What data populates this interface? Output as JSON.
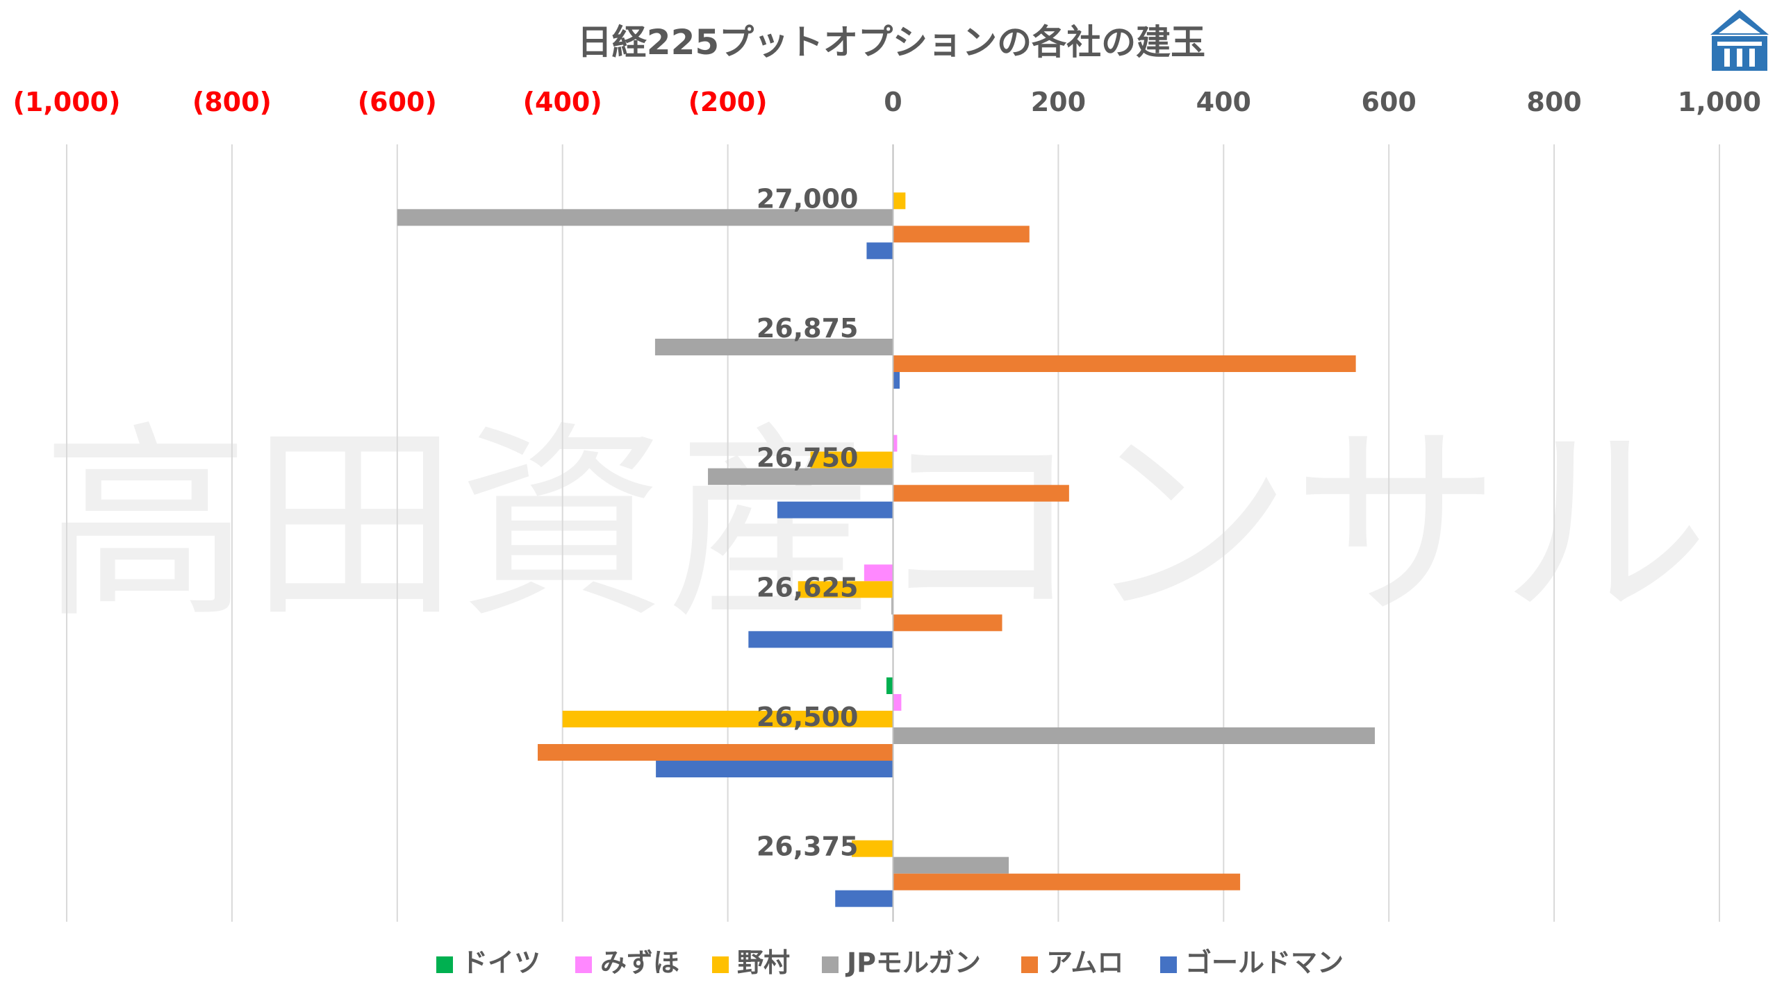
{
  "chart_data": {
    "type": "bar",
    "orientation": "horizontal",
    "title": "日経225プットオプションの各社の建玉",
    "watermark": "高田資産コンサル",
    "logo_icon": "building-icon",
    "xlim": [
      -1000,
      1000
    ],
    "x_ticks": [
      {
        "value": -1000,
        "label": "(1,000)"
      },
      {
        "value": -800,
        "label": "(800)"
      },
      {
        "value": -600,
        "label": "(600)"
      },
      {
        "value": -400,
        "label": "(400)"
      },
      {
        "value": -200,
        "label": "(200)"
      },
      {
        "value": 0,
        "label": "0"
      },
      {
        "value": 200,
        "label": "200"
      },
      {
        "value": 400,
        "label": "400"
      },
      {
        "value": 600,
        "label": "600"
      },
      {
        "value": 800,
        "label": "800"
      },
      {
        "value": 1000,
        "label": "1,000"
      }
    ],
    "negative_tick_color": "#ff0000",
    "positive_tick_color": "#595959",
    "grid": true,
    "legend_position": "bottom",
    "categories": [
      "27,000",
      "26,875",
      "26,750",
      "26,625",
      "26,500",
      "26,375"
    ],
    "series": [
      {
        "name": "ドイツ",
        "color": "#00b050",
        "values": [
          0,
          0,
          0,
          0,
          -8,
          0
        ]
      },
      {
        "name": "みずほ",
        "color": "#ff88ff",
        "values": [
          0,
          0,
          5,
          -35,
          10,
          0
        ]
      },
      {
        "name": "野村",
        "color": "#ffc000",
        "values": [
          15,
          0,
          -100,
          -115,
          -400,
          -50
        ]
      },
      {
        "name": "JPモルガン",
        "color": "#a5a5a5",
        "values": [
          -600,
          -288,
          -224,
          -2,
          583,
          140
        ]
      },
      {
        "name": "アムロ",
        "color": "#ed7d31",
        "values": [
          165,
          560,
          213,
          132,
          -430,
          420
        ]
      },
      {
        "name": "ゴールドマン",
        "color": "#4472c4",
        "values": [
          -32,
          8,
          -140,
          -175,
          -287,
          -70
        ]
      }
    ]
  }
}
